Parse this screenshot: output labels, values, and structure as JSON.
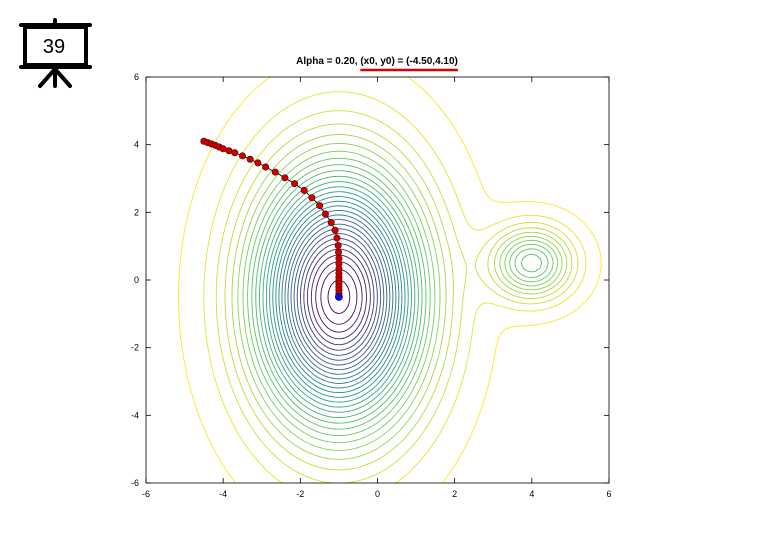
{
  "slide": {
    "number": "39"
  },
  "chart_data": {
    "type": "contour",
    "title": "Alpha = 0.20, (x0, y0) = (-4.50,4.10)",
    "title_highlight": "(x0, y0) = (-4.50,4.10)",
    "xlim": [
      -6,
      6
    ],
    "ylim": [
      -6,
      6
    ],
    "x_ticks": [
      -6,
      -4,
      -2,
      0,
      2,
      4,
      6
    ],
    "y_ticks": [
      -6,
      -4,
      -2,
      0,
      2,
      4,
      6
    ],
    "grid": false,
    "minima": [
      {
        "x": -1.0,
        "y": -0.5
      },
      {
        "x": 4.0,
        "y": 0.5
      }
    ],
    "colors": {
      "path_point": "#cc0000",
      "path_line": "#000000",
      "final_point": "#1010dd",
      "highlight": "#dd0000"
    },
    "series": [
      {
        "x": [
          -4.5,
          -4.4,
          -4.3,
          -4.2,
          -4.1,
          -4.0,
          -3.85,
          -3.7,
          -3.5,
          -3.3,
          -3.1,
          -2.9,
          -2.65,
          -2.4,
          -2.15,
          -1.9,
          -1.7,
          -1.5,
          -1.35,
          -1.2,
          -1.1,
          -1.05,
          -1.02,
          -1.01,
          -1.0,
          -1.0,
          -1.0,
          -1.0,
          -1.0,
          -1.0,
          -1.0,
          -1.0,
          -1.0,
          -1.0
        ],
        "y": [
          4.1,
          4.06,
          4.02,
          3.98,
          3.93,
          3.88,
          3.82,
          3.76,
          3.67,
          3.57,
          3.46,
          3.34,
          3.19,
          3.02,
          2.85,
          2.65,
          2.43,
          2.2,
          1.95,
          1.7,
          1.47,
          1.24,
          1.02,
          0.82,
          0.64,
          0.48,
          0.33,
          0.2,
          0.09,
          0.0,
          -0.1,
          -0.2,
          -0.3,
          -0.4
        ]
      }
    ],
    "final_point": {
      "x": -1.0,
      "y": -0.5
    }
  }
}
